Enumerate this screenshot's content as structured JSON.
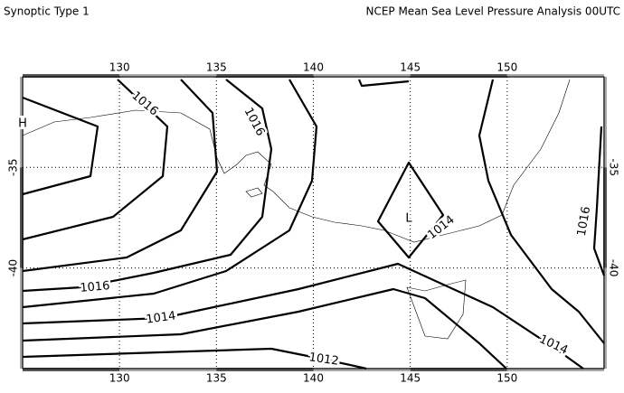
{
  "header": {
    "left": "Synoptic Type 1",
    "right": "NCEP Mean Sea Level Pressure Analysis 00UTC"
  },
  "axes": {
    "xlim": [
      125,
      155
    ],
    "ylim": [
      -30.5,
      -45
    ],
    "xticks": [
      130,
      135,
      140,
      145,
      150
    ],
    "yticks": [
      -35,
      -40
    ]
  },
  "isobar_labels": [
    1016,
    1016,
    1016,
    1014,
    1014,
    1016,
    1014,
    1012
  ],
  "centers": [
    "H",
    "L"
  ]
}
